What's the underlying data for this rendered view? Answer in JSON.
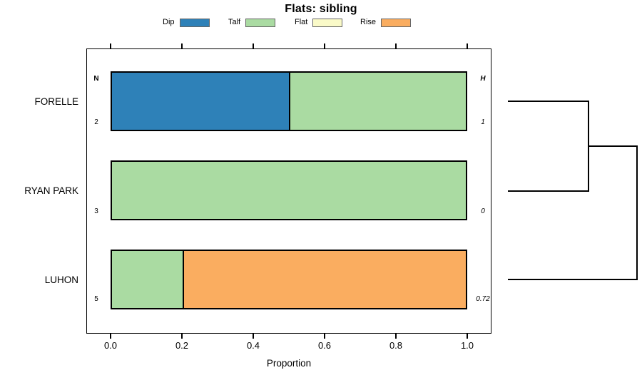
{
  "chart_data": {
    "type": "bar",
    "orientation": "horizontal",
    "stacked": true,
    "title": "Flats: sibling",
    "xlabel": "Proportion",
    "xlim": [
      0,
      1
    ],
    "x_ticks": [
      "0.0",
      "0.2",
      "0.4",
      "0.6",
      "0.8",
      "1.0"
    ],
    "grid": false,
    "legend_position": "top",
    "categories": [
      "FORELLE",
      "RYAN PARK",
      "LUHON"
    ],
    "series": [
      {
        "name": "Dip",
        "color": "#2E81B8",
        "values": [
          0.5,
          0,
          0
        ]
      },
      {
        "name": "Talf",
        "color": "#AADBA2",
        "values": [
          0.5,
          1.0,
          0.2
        ]
      },
      {
        "name": "Flat",
        "color": "#FAFAC8",
        "values": [
          0,
          0,
          0
        ]
      },
      {
        "name": "Rise",
        "color": "#FAAD60",
        "values": [
          0,
          0,
          0.8
        ]
      }
    ],
    "annotations": {
      "left_header": "N",
      "right_header": "H",
      "n_values": [
        "2",
        "3",
        "5"
      ],
      "h_values": [
        "1",
        "0",
        "0.72"
      ]
    },
    "dendrogram": {
      "side": "right",
      "leaves": [
        "FORELLE",
        "RYAN PARK",
        "LUHON"
      ],
      "merges": [
        {
          "members": [
            "FORELLE",
            "RYAN PARK"
          ],
          "relative_height": 0.66
        },
        {
          "members": [
            "FORELLE+RYAN PARK",
            "LUHON"
          ],
          "relative_height": 1.0
        }
      ]
    }
  }
}
